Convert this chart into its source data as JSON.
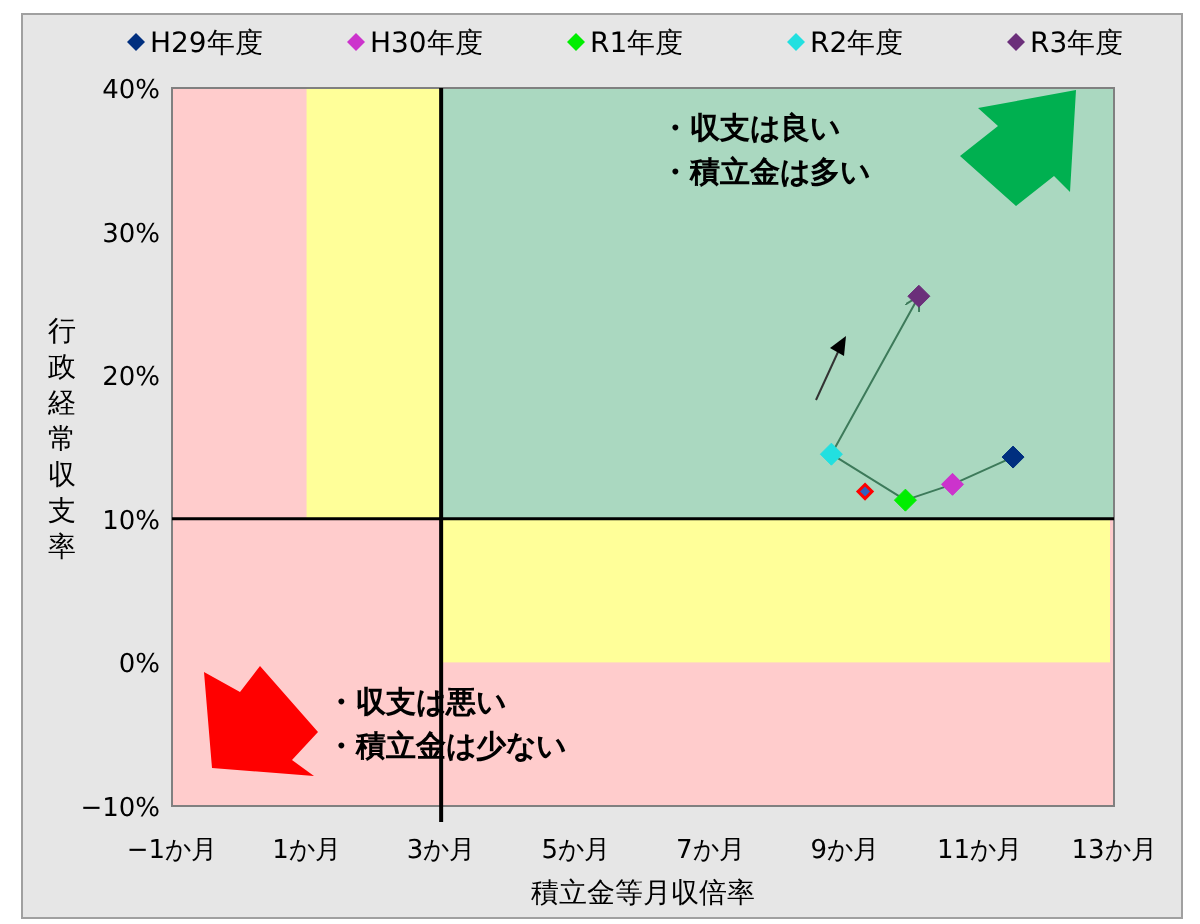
{
  "chart_data": {
    "type": "scatter",
    "xlabel": "積立金等月収倍率",
    "ylabel": "行政経常収支率",
    "xlim": [
      -1,
      13
    ],
    "ylim": [
      -10,
      40
    ],
    "xticks": [
      {
        "value": -1,
        "label": "−1か月"
      },
      {
        "value": 1,
        "label": "1か月"
      },
      {
        "value": 3,
        "label": "3か月"
      },
      {
        "value": 5,
        "label": "5か月"
      },
      {
        "value": 7,
        "label": "7か月"
      },
      {
        "value": 9,
        "label": "9か月"
      },
      {
        "value": 11,
        "label": "11か月"
      },
      {
        "value": 13,
        "label": "13か月"
      }
    ],
    "yticks": [
      {
        "value": -10,
        "label": "−10%"
      },
      {
        "value": 0,
        "label": "0%"
      },
      {
        "value": 10,
        "label": "10%"
      },
      {
        "value": 20,
        "label": "20%"
      },
      {
        "value": 30,
        "label": "30%"
      },
      {
        "value": 40,
        "label": "40%"
      }
    ],
    "marker": "diamond",
    "legend": "top",
    "grid": false,
    "ref_lines": [
      {
        "axis": "x",
        "value": 3,
        "color": "#000000"
      },
      {
        "axis": "y",
        "value": 10,
        "color": "#000000"
      }
    ],
    "bands": [
      {
        "axis": "x",
        "from": 1,
        "to": 3,
        "color": "#ffff99"
      },
      {
        "axis": "y",
        "from": 0,
        "to": 10,
        "color": "#ffff99"
      }
    ],
    "series": [
      {
        "type": "line",
        "marker": "none",
        "color": "#3d7a5a",
        "x": [
          11.5,
          10.6,
          9.9,
          8.8,
          10.1
        ],
        "values": [
          14.3,
          12.4,
          11.3,
          14.5,
          25.5
        ]
      },
      {
        "name": "H29年度",
        "color": "#002f7f",
        "x": [
          11.5
        ],
        "values": [
          14.3
        ]
      },
      {
        "name": "H30年度",
        "color": "#cc33cc",
        "x": [
          10.6
        ],
        "values": [
          12.4
        ]
      },
      {
        "name": "R1年度",
        "color": "#00ee00",
        "x": [
          9.9
        ],
        "values": [
          11.3
        ]
      },
      {
        "name": "R2年度",
        "color": "#22e0e0",
        "x": [
          8.8
        ],
        "values": [
          14.5
        ]
      },
      {
        "name": "R3年度",
        "color": "#6b2f7a",
        "x": [
          10.1
        ],
        "values": [
          25.5
        ]
      },
      {
        "color": "#ff0000",
        "x": [
          9.3
        ],
        "values": [
          11.9
        ]
      }
    ],
    "annotations": [
      "・収支は良い",
      "・積立金は多い",
      "・収支は悪い",
      "・積立金は少ない"
    ]
  }
}
